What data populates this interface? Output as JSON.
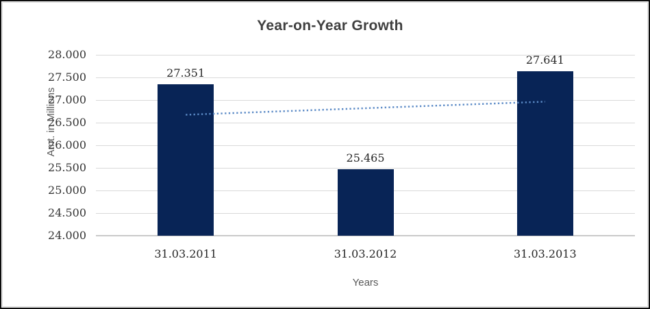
{
  "chart_data": {
    "type": "bar",
    "title": "Year-on-Year Growth",
    "xlabel": "Years",
    "ylabel": "Amt. in Millions",
    "categories": [
      "31.03.2011",
      "31.03.2012",
      "31.03.2013"
    ],
    "values": [
      27.351,
      25.465,
      27.641
    ],
    "data_labels": [
      "27.351",
      "25.465",
      "27.641"
    ],
    "ylim": [
      24.0,
      28.0
    ],
    "ytick_step": 0.5,
    "ytick_labels": [
      "28.000",
      "27.500",
      "27.000",
      "26.500",
      "26.000",
      "25.500",
      "25.000",
      "24.500",
      "24.000"
    ],
    "grid": "horizontal",
    "legend": "none",
    "bar_color": "#082456",
    "gridline_color": "#d9d9d9",
    "title_color": "#3f3f3f",
    "axis_title_color": "#595959",
    "trendline": {
      "type": "linear",
      "style": "dotted",
      "color": "#5b8ac6",
      "values": [
        26.674,
        26.964
      ]
    }
  }
}
